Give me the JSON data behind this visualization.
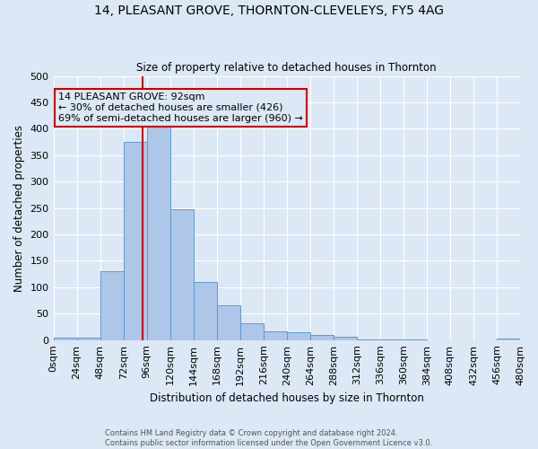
{
  "title": "14, PLEASANT GROVE, THORNTON-CLEVELEYS, FY5 4AG",
  "subtitle": "Size of property relative to detached houses in Thornton",
  "xlabel": "Distribution of detached houses by size in Thornton",
  "ylabel": "Number of detached properties",
  "footnote1": "Contains HM Land Registry data © Crown copyright and database right 2024.",
  "footnote2": "Contains public sector information licensed under the Open Government Licence v3.0.",
  "bar_edges": [
    0,
    24,
    48,
    72,
    96,
    120,
    144,
    168,
    192,
    216,
    240,
    264,
    288,
    312,
    336,
    360,
    384,
    408,
    432,
    456,
    480
  ],
  "bar_heights": [
    4,
    5,
    130,
    375,
    415,
    247,
    110,
    65,
    32,
    16,
    15,
    9,
    7,
    2,
    1,
    1,
    0,
    0,
    0,
    3
  ],
  "bar_color": "#aec6e8",
  "bar_edge_color": "#5b9bd5",
  "property_line_x": 92,
  "property_line_color": "#cc0000",
  "annotation_line1": "14 PLEASANT GROVE: 92sqm",
  "annotation_line2": "← 30% of detached houses are smaller (426)",
  "annotation_line3": "69% of semi-detached houses are larger (960) →",
  "annotation_box_color": "#cc0000",
  "ylim": [
    0,
    500
  ],
  "xlim": [
    0,
    480
  ],
  "tick_interval": 24,
  "background_color": "#dce8f5",
  "grid_color": "#ffffff"
}
